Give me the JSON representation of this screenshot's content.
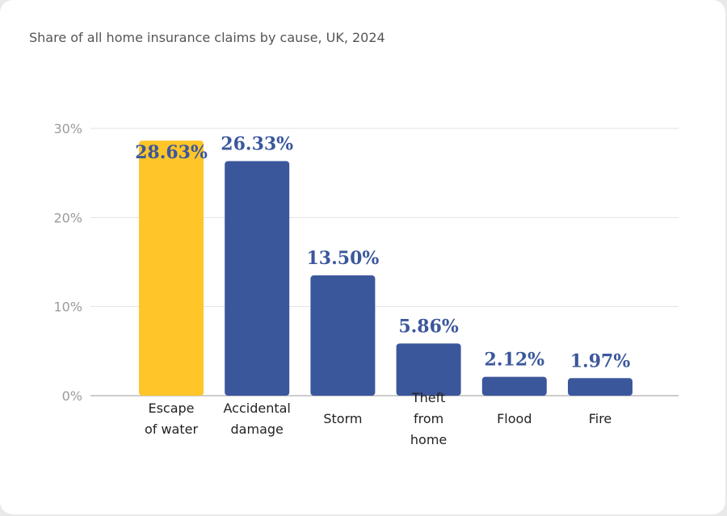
{
  "chart_data": {
    "type": "bar",
    "title": "Share of all home insurance claims by cause, UK, 2024",
    "xlabel": "",
    "ylabel": "",
    "ylim": [
      0,
      30
    ],
    "yticks": [
      0,
      10,
      20,
      30
    ],
    "ytick_suffix": "%",
    "grid": true,
    "legend": "none",
    "categories": [
      [
        "Escape",
        "of water"
      ],
      [
        "Accidental",
        "damage"
      ],
      [
        "Storm"
      ],
      [
        "Theft",
        "from",
        "home"
      ],
      [
        "Flood"
      ],
      [
        "Fire"
      ]
    ],
    "values": [
      28.63,
      26.33,
      13.5,
      5.86,
      2.12,
      1.97
    ],
    "data_labels": [
      "28.63%",
      "26.33%",
      "13.50%",
      "5.86%",
      "2.12%",
      "1.97%"
    ],
    "colors": {
      "highlight": "#FFC529",
      "default": "#3B579C",
      "label": "#3B579C",
      "grid": "#e2e2e2",
      "axis": "#cccccc"
    },
    "highlight_index": 0
  }
}
